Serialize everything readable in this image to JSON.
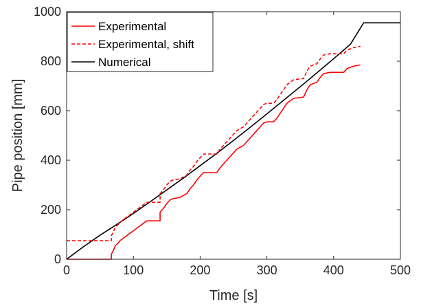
{
  "chart_data": {
    "type": "line",
    "title": "",
    "xlabel": "Time [s]",
    "ylabel": "Pipe position [mm]",
    "xlim": [
      0,
      500
    ],
    "ylim": [
      0,
      1000
    ],
    "x_ticks": [
      0,
      100,
      200,
      300,
      400,
      500
    ],
    "y_ticks": [
      0,
      200,
      400,
      600,
      800,
      1000
    ],
    "grid": false,
    "legend_position": "top-left",
    "series": [
      {
        "name": "Experimental",
        "color": "#ff0000",
        "style": "solid",
        "points": [
          [
            0,
            0
          ],
          [
            67,
            0
          ],
          [
            67,
            20
          ],
          [
            70,
            35
          ],
          [
            73,
            55
          ],
          [
            77,
            65
          ],
          [
            80,
            75
          ],
          [
            85,
            85
          ],
          [
            90,
            95
          ],
          [
            95,
            105
          ],
          [
            100,
            115
          ],
          [
            105,
            125
          ],
          [
            110,
            135
          ],
          [
            115,
            145
          ],
          [
            120,
            155
          ],
          [
            130,
            155
          ],
          [
            135,
            155
          ],
          [
            140,
            155
          ],
          [
            140,
            190
          ],
          [
            145,
            205
          ],
          [
            150,
            225
          ],
          [
            155,
            240
          ],
          [
            160,
            245
          ],
          [
            170,
            250
          ],
          [
            180,
            265
          ],
          [
            185,
            285
          ],
          [
            190,
            300
          ],
          [
            195,
            320
          ],
          [
            200,
            335
          ],
          [
            205,
            350
          ],
          [
            215,
            350
          ],
          [
            225,
            350
          ],
          [
            230,
            370
          ],
          [
            235,
            385
          ],
          [
            240,
            400
          ],
          [
            245,
            415
          ],
          [
            250,
            430
          ],
          [
            255,
            445
          ],
          [
            265,
            460
          ],
          [
            270,
            475
          ],
          [
            275,
            490
          ],
          [
            280,
            505
          ],
          [
            285,
            520
          ],
          [
            290,
            535
          ],
          [
            295,
            550
          ],
          [
            300,
            555
          ],
          [
            310,
            555
          ],
          [
            315,
            570
          ],
          [
            320,
            590
          ],
          [
            325,
            610
          ],
          [
            330,
            630
          ],
          [
            340,
            650
          ],
          [
            355,
            655
          ],
          [
            360,
            685
          ],
          [
            365,
            705
          ],
          [
            375,
            715
          ],
          [
            380,
            735
          ],
          [
            385,
            750
          ],
          [
            395,
            755
          ],
          [
            415,
            755
          ],
          [
            420,
            770
          ],
          [
            430,
            780
          ],
          [
            440,
            785
          ]
        ]
      },
      {
        "name": "Experimental, shift",
        "color": "#ff0000",
        "style": "dashed",
        "points": [
          [
            0,
            75
          ],
          [
            67,
            75
          ],
          [
            67,
            95
          ],
          [
            70,
            110
          ],
          [
            73,
            130
          ],
          [
            77,
            140
          ],
          [
            80,
            150
          ],
          [
            85,
            160
          ],
          [
            90,
            170
          ],
          [
            95,
            180
          ],
          [
            100,
            190
          ],
          [
            105,
            200
          ],
          [
            110,
            210
          ],
          [
            115,
            220
          ],
          [
            120,
            230
          ],
          [
            135,
            230
          ],
          [
            140,
            230
          ],
          [
            140,
            265
          ],
          [
            145,
            280
          ],
          [
            150,
            300
          ],
          [
            155,
            315
          ],
          [
            160,
            320
          ],
          [
            170,
            325
          ],
          [
            180,
            340
          ],
          [
            185,
            360
          ],
          [
            190,
            375
          ],
          [
            195,
            395
          ],
          [
            200,
            410
          ],
          [
            205,
            425
          ],
          [
            225,
            425
          ],
          [
            230,
            445
          ],
          [
            235,
            460
          ],
          [
            240,
            475
          ],
          [
            245,
            490
          ],
          [
            250,
            505
          ],
          [
            255,
            520
          ],
          [
            265,
            535
          ],
          [
            270,
            550
          ],
          [
            275,
            565
          ],
          [
            280,
            580
          ],
          [
            285,
            595
          ],
          [
            290,
            610
          ],
          [
            295,
            625
          ],
          [
            300,
            630
          ],
          [
            310,
            630
          ],
          [
            315,
            645
          ],
          [
            320,
            665
          ],
          [
            325,
            685
          ],
          [
            330,
            705
          ],
          [
            340,
            725
          ],
          [
            355,
            730
          ],
          [
            360,
            760
          ],
          [
            365,
            780
          ],
          [
            375,
            790
          ],
          [
            380,
            810
          ],
          [
            385,
            825
          ],
          [
            395,
            830
          ],
          [
            415,
            830
          ],
          [
            420,
            845
          ],
          [
            430,
            855
          ],
          [
            440,
            860
          ]
        ]
      },
      {
        "name": "Numerical",
        "color": "#000000",
        "style": "solid",
        "points": [
          [
            0,
            0
          ],
          [
            25,
            50
          ],
          [
            50,
            97
          ],
          [
            75,
            140
          ],
          [
            100,
            185
          ],
          [
            125,
            232
          ],
          [
            150,
            280
          ],
          [
            175,
            328
          ],
          [
            200,
            378
          ],
          [
            225,
            428
          ],
          [
            250,
            480
          ],
          [
            275,
            533
          ],
          [
            300,
            587
          ],
          [
            325,
            642
          ],
          [
            350,
            697
          ],
          [
            375,
            753
          ],
          [
            400,
            810
          ],
          [
            425,
            868
          ],
          [
            445,
            955
          ],
          [
            500,
            955
          ]
        ]
      }
    ]
  }
}
